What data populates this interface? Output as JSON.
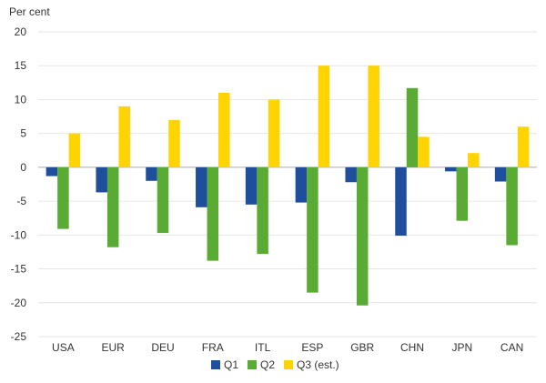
{
  "chart_data": {
    "type": "bar",
    "ylabel": "Per cent",
    "ylim": [
      -25,
      20
    ],
    "yticks": [
      20,
      15,
      10,
      5,
      0,
      -5,
      -10,
      -15,
      -20,
      -25
    ],
    "grid": true,
    "legend_position": "bottom",
    "categories": [
      "USA",
      "EUR",
      "DEU",
      "FRA",
      "ITL",
      "ESP",
      "GBR",
      "CHN",
      "JPN",
      "CAN"
    ],
    "series": [
      {
        "name": "Q1",
        "color": "#1f4e9c",
        "values": [
          -1.3,
          -3.7,
          -2.0,
          -5.9,
          -5.5,
          -5.2,
          -2.2,
          -10.1,
          -0.6,
          -2.1
        ]
      },
      {
        "name": "Q2",
        "color": "#5aab34",
        "values": [
          -9.1,
          -11.8,
          -9.7,
          -13.8,
          -12.8,
          -18.5,
          -20.4,
          11.7,
          -7.9,
          -11.5
        ]
      },
      {
        "name": "Q3 (est.)",
        "color": "#ffd400",
        "values": [
          5.0,
          9.0,
          7.0,
          11.0,
          10.0,
          15.0,
          15.0,
          4.5,
          2.1,
          6.0
        ]
      }
    ]
  }
}
